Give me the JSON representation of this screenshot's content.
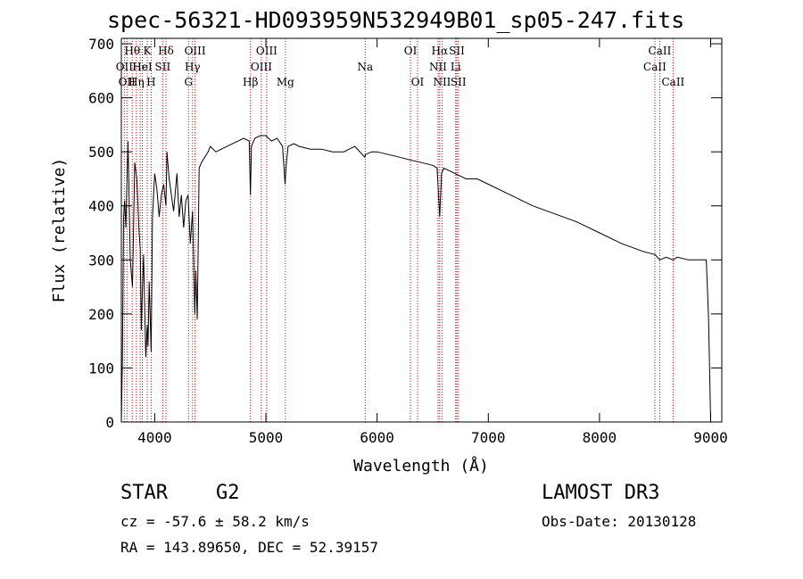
{
  "chart_data": {
    "type": "line",
    "title": "spec-56321-HD093959N532949B01_sp05-247.fits",
    "xlabel": "Wavelength (Å)",
    "ylabel": "Flux (relative)",
    "xlim": [
      3700,
      9100
    ],
    "ylim": [
      0,
      710
    ],
    "xticks": [
      4000,
      5000,
      6000,
      7000,
      8000,
      9000
    ],
    "yticks": [
      0,
      100,
      200,
      300,
      400,
      500,
      600,
      700
    ],
    "series": [
      {
        "name": "spectrum",
        "x": [
          3700,
          3710,
          3720,
          3730,
          3740,
          3760,
          3780,
          3800,
          3820,
          3840,
          3860,
          3870,
          3880,
          3890,
          3900,
          3920,
          3933,
          3940,
          3950,
          3968,
          3980,
          4000,
          4020,
          4040,
          4060,
          4080,
          4101,
          4110,
          4130,
          4150,
          4170,
          4200,
          4220,
          4240,
          4260,
          4280,
          4300,
          4320,
          4340,
          4360,
          4370,
          4383,
          4400,
          4420,
          4450,
          4480,
          4500,
          4550,
          4600,
          4650,
          4700,
          4750,
          4800,
          4850,
          4861,
          4870,
          4900,
          4950,
          5000,
          5050,
          5100,
          5150,
          5172,
          5184,
          5200,
          5250,
          5300,
          5400,
          5500,
          5600,
          5700,
          5800,
          5890,
          5896,
          5950,
          6000,
          6100,
          6200,
          6300,
          6400,
          6500,
          6540,
          6563,
          6580,
          6600,
          6700,
          6800,
          6900,
          7000,
          7200,
          7400,
          7600,
          7800,
          8000,
          8200,
          8400,
          8500,
          8542,
          8600,
          8662,
          8700,
          8800,
          8900,
          8960,
          8980,
          8990,
          9000
        ],
        "values": [
          0,
          120,
          380,
          410,
          360,
          520,
          300,
          250,
          480,
          450,
          350,
          320,
          170,
          250,
          310,
          120,
          180,
          140,
          260,
          130,
          380,
          460,
          430,
          380,
          420,
          440,
          400,
          500,
          450,
          420,
          390,
          460,
          380,
          420,
          360,
          410,
          420,
          330,
          390,
          200,
          280,
          190,
          470,
          480,
          490,
          500,
          510,
          500,
          505,
          510,
          515,
          520,
          525,
          520,
          420,
          510,
          525,
          530,
          530,
          520,
          525,
          510,
          440,
          480,
          510,
          515,
          510,
          505,
          505,
          500,
          500,
          510,
          490,
          495,
          500,
          500,
          495,
          490,
          485,
          480,
          475,
          470,
          380,
          460,
          470,
          460,
          450,
          450,
          440,
          420,
          400,
          385,
          370,
          350,
          330,
          315,
          310,
          300,
          305,
          300,
          305,
          300,
          300,
          300,
          200,
          100,
          0
        ]
      }
    ],
    "lines": [
      {
        "wavelength": 3727,
        "label": "OII",
        "row": 2
      },
      {
        "wavelength": 3750,
        "label": "OII",
        "row": 3
      },
      {
        "wavelength": 3798,
        "label": "Hθ",
        "row": 1
      },
      {
        "wavelength": 3835,
        "label": "Hη",
        "row": 3
      },
      {
        "wavelength": 3869,
        "label": "He",
        "row": 2
      },
      {
        "wavelength": 3889,
        "label": "HeI",
        "row": 2
      },
      {
        "wavelength": 3933,
        "label": "K",
        "row": 1
      },
      {
        "wavelength": 3968,
        "label": "H",
        "row": 3
      },
      {
        "wavelength": 4072,
        "label": "SII",
        "row": 2
      },
      {
        "wavelength": 4101,
        "label": "Hδ",
        "row": 1
      },
      {
        "wavelength": 4304,
        "label": "G",
        "row": 3
      },
      {
        "wavelength": 4340,
        "label": "Hγ",
        "row": 2
      },
      {
        "wavelength": 4363,
        "label": "OIII",
        "row": 1
      },
      {
        "wavelength": 4861,
        "label": "Hβ",
        "row": 3
      },
      {
        "wavelength": 4959,
        "label": "OIII",
        "row": 2
      },
      {
        "wavelength": 5007,
        "label": "OIII",
        "row": 1
      },
      {
        "wavelength": 5175,
        "label": "Mg",
        "row": 3
      },
      {
        "wavelength": 5893,
        "label": "Na",
        "row": 2
      },
      {
        "wavelength": 6300,
        "label": "OI",
        "row": 1
      },
      {
        "wavelength": 6364,
        "label": "OI",
        "row": 3
      },
      {
        "wavelength": 6548,
        "label": "NII",
        "row": 2
      },
      {
        "wavelength": 6563,
        "label": "Hα",
        "row": 1
      },
      {
        "wavelength": 6584,
        "label": "NII",
        "row": 3
      },
      {
        "wavelength": 6707,
        "label": "Li",
        "row": 2
      },
      {
        "wavelength": 6717,
        "label": "SII",
        "row": 1
      },
      {
        "wavelength": 6731,
        "label": "SII",
        "row": 3
      },
      {
        "wavelength": 8498,
        "label": "CaII",
        "row": 2
      },
      {
        "wavelength": 8542,
        "label": "CaII",
        "row": 1
      },
      {
        "wavelength": 8662,
        "label": "CaII",
        "row": 3
      }
    ]
  },
  "info": {
    "object_class": "STAR",
    "subclass": "G2",
    "survey": "LAMOST DR3",
    "redshift": "cz = -57.6 ± 58.2 km/s",
    "obs_date": "Obs-Date: 20130128",
    "coords": "RA = 143.89650, DEC =  52.39157"
  },
  "colors": {
    "spectrum": "#000000",
    "line_markers": "#cc0000"
  }
}
